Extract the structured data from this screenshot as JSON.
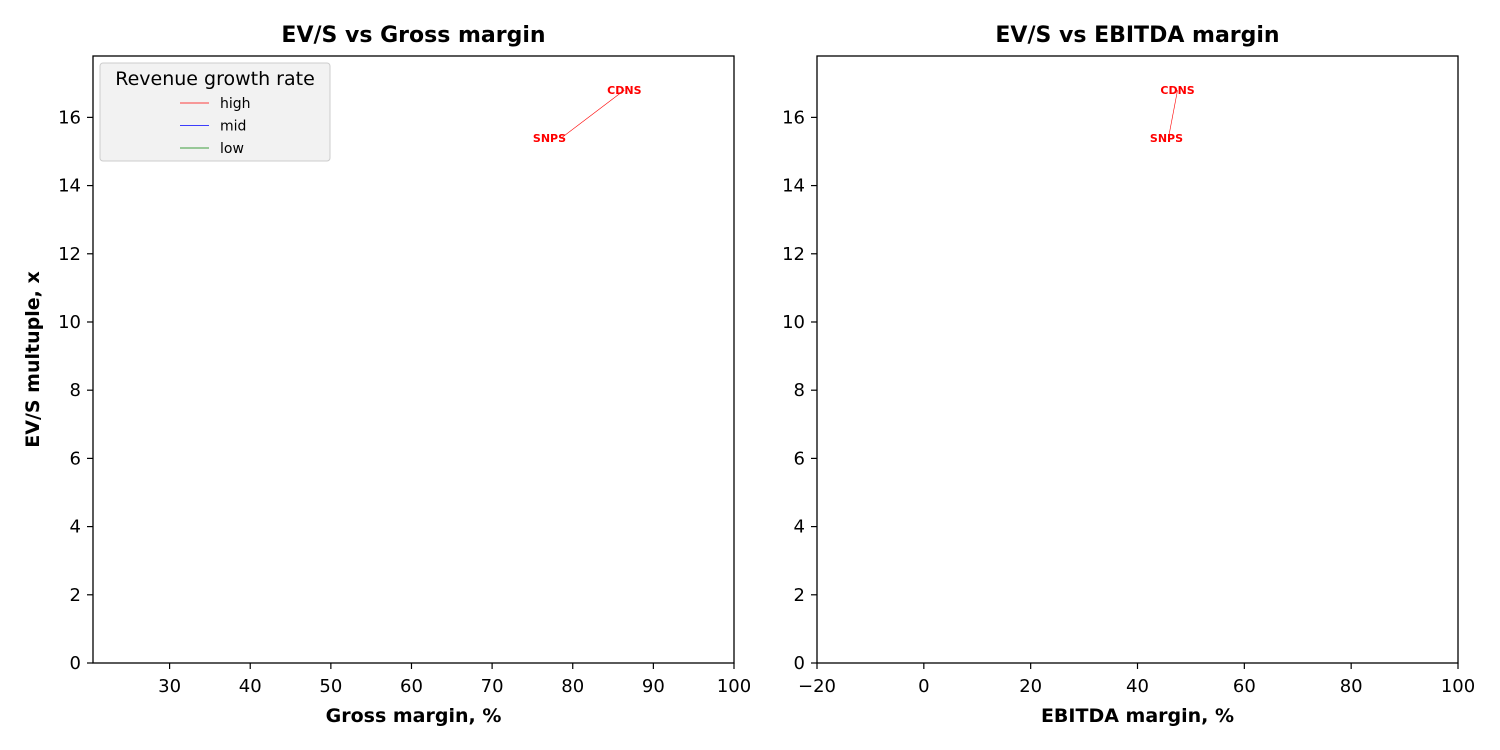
{
  "chart_data": [
    {
      "type": "scatter",
      "title": "EV/S vs Gross margin",
      "xlabel": "Gross margin, %",
      "ylabel": "EV/S multuple, x",
      "xlim": [
        20.5,
        100
      ],
      "ylim": [
        0,
        17.8
      ],
      "xticks": [
        30,
        40,
        50,
        60,
        70,
        80,
        90,
        100
      ],
      "yticks": [
        0,
        2,
        4,
        6,
        8,
        10,
        12,
        14,
        16
      ],
      "grid": false,
      "legend": {
        "title": "Revenue growth rate",
        "placement": "upper-left",
        "entries": [
          {
            "name": "high",
            "color": "#ff0000"
          },
          {
            "name": "mid",
            "color": "#0000ff"
          },
          {
            "name": "low",
            "color": "#008000"
          }
        ]
      },
      "points": [
        {
          "label": "CDNS",
          "x": 86.4,
          "y": 16.8,
          "group": "high",
          "color": "#ff0000"
        },
        {
          "label": "SNPS",
          "x": 78.6,
          "y": 15.4,
          "group": "high",
          "color": "#ff0000"
        }
      ]
    },
    {
      "type": "scatter",
      "title": "EV/S vs EBITDA margin",
      "xlabel": "EBITDA margin, %",
      "ylabel": "",
      "xlim": [
        -20,
        100
      ],
      "ylim": [
        0,
        17.8
      ],
      "xticks": [
        -20,
        0,
        20,
        40,
        60,
        80,
        100
      ],
      "yticks": [
        0,
        2,
        4,
        6,
        8,
        10,
        12,
        14,
        16
      ],
      "grid": false,
      "points": [
        {
          "label": "CDNS",
          "x": 47.5,
          "y": 16.8,
          "group": "high",
          "color": "#ff0000"
        },
        {
          "label": "SNPS",
          "x": 45.8,
          "y": 15.4,
          "group": "high",
          "color": "#ff0000"
        }
      ]
    }
  ]
}
